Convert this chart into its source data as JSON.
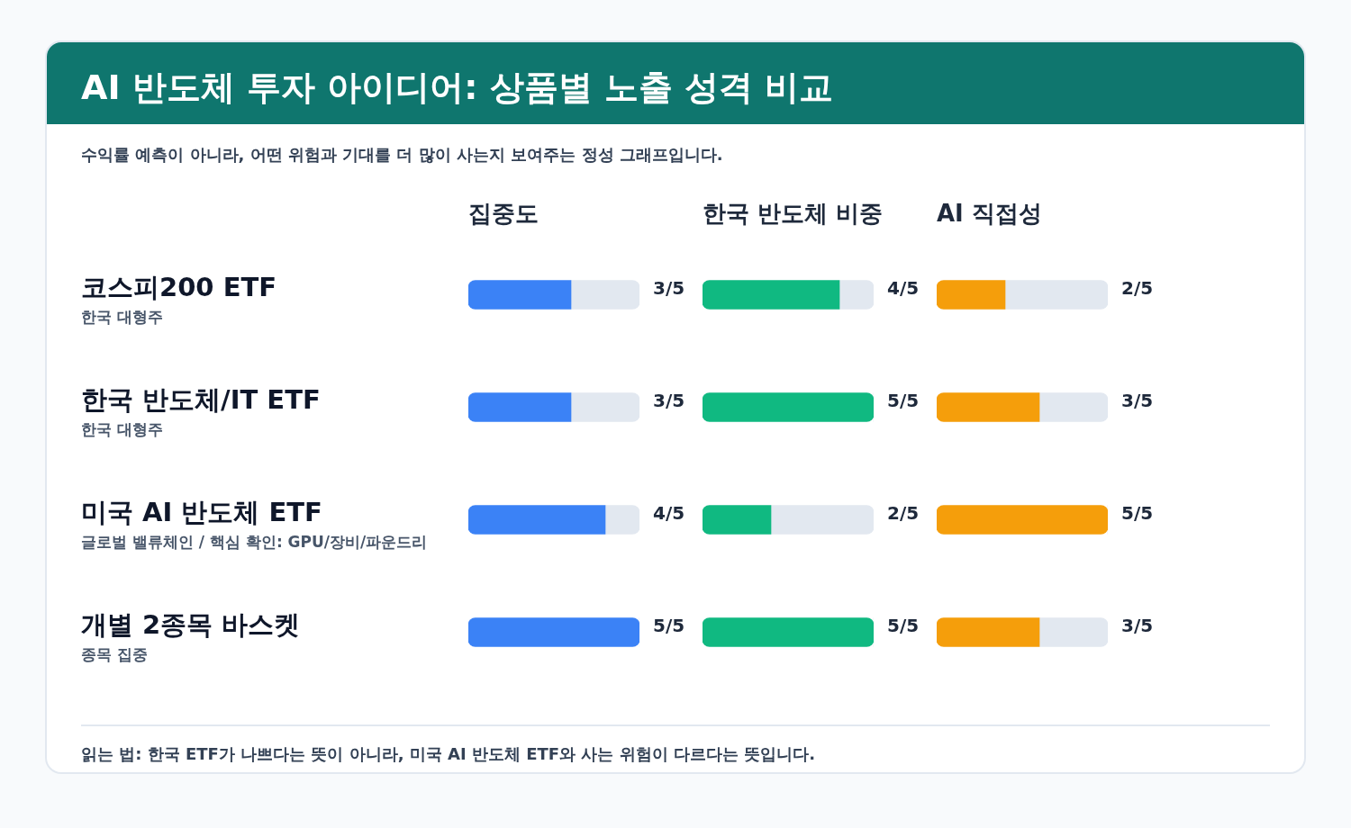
{
  "chart_data": [
    {
      "type": "bar",
      "orientation": "horizontal",
      "stacked": true,
      "title": "AI 반도체 투자 아이디어: 상품별 노출 성격 비교",
      "subtitle": "수익률 예측이 아니라, 어떤 위험과 기대를 더 많이 사는지 보여주는 정성 그래프입니다.",
      "categories": [
        "코스피200 ETF\n한국 대형주",
        "한국 반도체/IT ETF\n한국 대형주",
        "미국 AI 반도체 ETF\n글로벌 밸류체인 / 핵심 확인: GPU/장비/파운드리",
        "개별 2종목 바스켓\n종목 집중"
      ],
      "xlim": [
        0,
        1
      ],
      "tick_labels": "y",
      "legend": false,
      "series": [
        {
          "name": "집중도",
          "color": "#3b82f6",
          "values": [
            0.6,
            0.6,
            0.8,
            1
          ],
          "value_labels": [
            "3/5",
            "3/5",
            "4/5",
            "5/5"
          ]
        },
        {
          "color": "#e2e8f0",
          "values": [
            0.4,
            0.4,
            0.2,
            0
          ]
        }
      ],
      "annotations": [
        "읽는 법: 한국 ETF가 나쁘다는 뜻이 아니라, 미국 AI 반도체 ETF와 사는 위험이 다르다는 뜻입니다."
      ]
    },
    {
      "type": "bar",
      "orientation": "horizontal",
      "stacked": true,
      "categories": [
        null,
        null,
        null,
        null
      ],
      "xlim": [
        0,
        1
      ],
      "legend": false,
      "series": [
        {
          "name": "한국 반도체 비중",
          "color": "#10b981",
          "values": [
            0.8,
            1,
            0.4,
            1
          ],
          "value_labels": [
            "4/5",
            "5/5",
            "2/5",
            "5/5"
          ]
        },
        {
          "color": "#e2e8f0",
          "values": [
            0.2,
            0,
            0.6,
            0
          ]
        }
      ]
    },
    {
      "type": "bar",
      "orientation": "horizontal",
      "stacked": true,
      "categories": [
        null,
        null,
        null,
        null
      ],
      "xlim": [
        0,
        1
      ],
      "legend": false,
      "series": [
        {
          "name": "AI 직접성",
          "color": "#f59e0b",
          "values": [
            0.4,
            0.6,
            1,
            0.6
          ],
          "value_labels": [
            "2/5",
            "3/5",
            "5/5",
            "3/5"
          ]
        },
        {
          "color": "#e2e8f0",
          "values": [
            0.6,
            0.4,
            0,
            0.4
          ]
        }
      ]
    }
  ]
}
